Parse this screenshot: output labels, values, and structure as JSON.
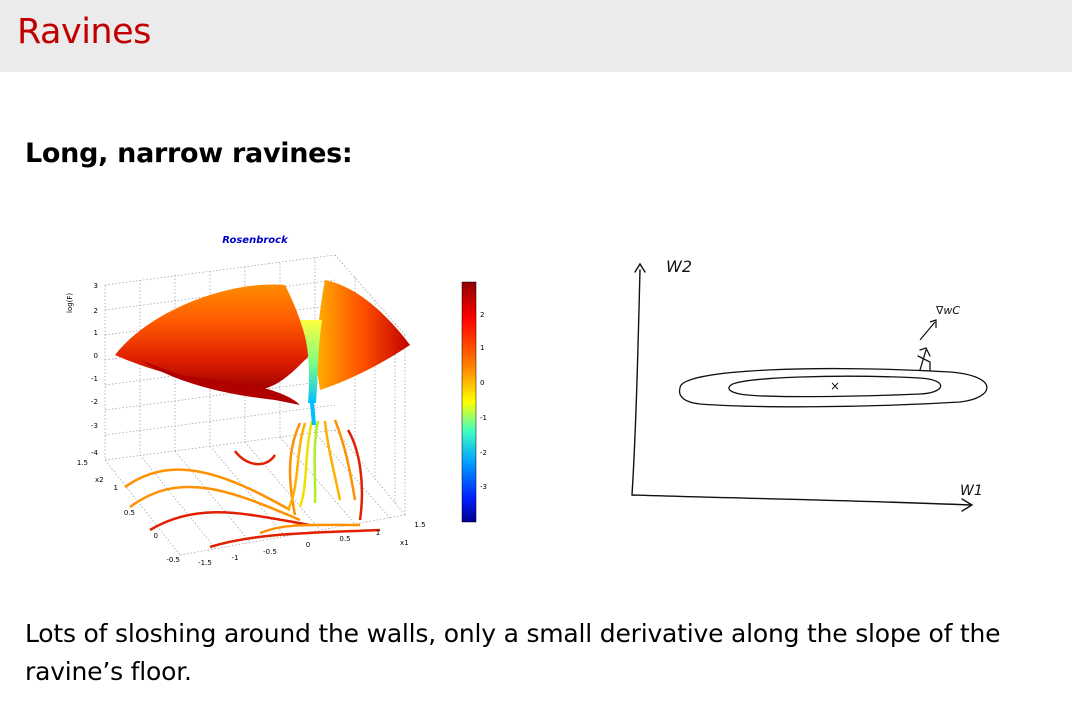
{
  "slide": {
    "title": "Ravines",
    "subtitle": "Long, narrow ravines:",
    "caption": "Lots of sloshing around the walls, only a small derivative along the slope of the ravine’s floor."
  },
  "plot3d": {
    "title": "Rosenbrock",
    "zlabel": "log(F)",
    "ylabel": "x2",
    "xlabel": "x1",
    "z_ticks": [
      "3",
      "2",
      "1",
      "0",
      "-1",
      "-2",
      "-3",
      "-4"
    ],
    "y_ticks": [
      "1.5",
      "1",
      "0.5",
      "0",
      "-0.5"
    ],
    "x_ticks": [
      "-1.5",
      "-1",
      "-0.5",
      "0",
      "0.5",
      "1",
      "1.5"
    ],
    "colorbar_ticks": [
      "2",
      "1",
      "0",
      "-1",
      "-2",
      "-3"
    ]
  },
  "sketch": {
    "w2_label": "W2",
    "w1_label": "W1",
    "gradient_label": "∇wC",
    "minimum_marker": "×"
  },
  "colors": {
    "title": "#c00000",
    "header_bg": "#ebebeb",
    "plot_title": "#0000cc"
  }
}
